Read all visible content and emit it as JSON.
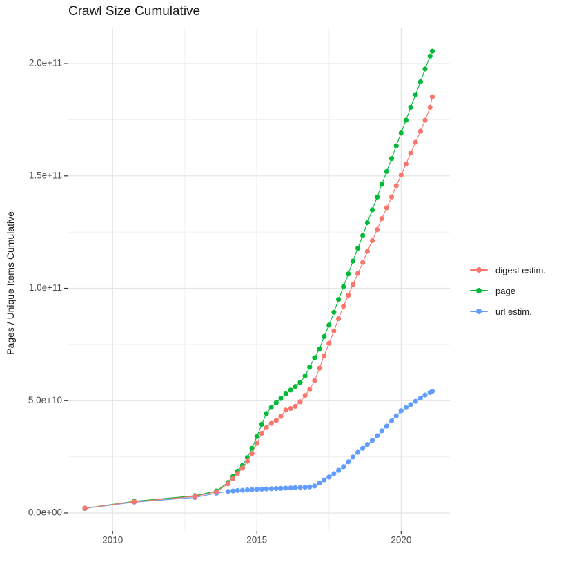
{
  "title": "Crawl Size Cumulative",
  "y_axis_title": "Pages / Unique Items Cumulative",
  "colors": {
    "background": "#ffffff",
    "grid_major": "#e3e3e3",
    "grid_minor": "#f0f0f0",
    "tick_mark": "#333333",
    "axis_text": "#4d4d4d",
    "title_text": "#1a1a1a"
  },
  "chart_data": {
    "type": "scatter",
    "title": "Crawl Size Cumulative",
    "xlabel": "",
    "ylabel": "Pages / Unique Items Cumulative",
    "x_unit": "year (decimal)",
    "y_unit": "count; stored values are in billions (value x 1e9)",
    "grid": true,
    "legend_position": "right",
    "xlim": [
      2008.44,
      2021.69
    ],
    "ylim_e9": [
      -8,
      216
    ],
    "x_ticks": [
      {
        "value": 2010,
        "label": "2010"
      },
      {
        "value": 2015,
        "label": "2015"
      },
      {
        "value": 2020,
        "label": "2020"
      }
    ],
    "x_minor": [
      2012.5,
      2017.5
    ],
    "y_ticks": [
      {
        "value_e9": 0,
        "label": "0.0e+00"
      },
      {
        "value_e9": 50,
        "label": "5.0e+10"
      },
      {
        "value_e9": 100,
        "label": "1.0e+11"
      },
      {
        "value_e9": 150,
        "label": "1.5e+11"
      },
      {
        "value_e9": 200,
        "label": "2.0e+11"
      }
    ],
    "y_minor_e9": [
      25,
      75,
      125,
      175
    ],
    "draw_order": [
      "url estim.",
      "page",
      "digest estim."
    ],
    "series": [
      {
        "name": "digest estim.",
        "color": "#F8766D",
        "points": [
          [
            2009.04,
            2.1
          ],
          [
            2010.75,
            5.0
          ],
          [
            2012.85,
            7.4
          ],
          [
            2013.6,
            9.4
          ],
          [
            2014.0,
            13.0
          ],
          [
            2014.17,
            15.3
          ],
          [
            2014.33,
            17.6
          ],
          [
            2014.5,
            20.0
          ],
          [
            2014.67,
            23.0
          ],
          [
            2014.83,
            26.5
          ],
          [
            2015.0,
            31.0
          ],
          [
            2015.17,
            35.5
          ],
          [
            2015.33,
            38.0
          ],
          [
            2015.5,
            39.9
          ],
          [
            2015.67,
            41.2
          ],
          [
            2015.83,
            43.0
          ],
          [
            2016.0,
            45.8
          ],
          [
            2016.17,
            46.5
          ],
          [
            2016.33,
            47.5
          ],
          [
            2016.5,
            49.5
          ],
          [
            2016.67,
            52.3
          ],
          [
            2016.83,
            55.0
          ],
          [
            2017.0,
            58.9
          ],
          [
            2017.17,
            64.5
          ],
          [
            2017.33,
            70.0
          ],
          [
            2017.5,
            75.5
          ],
          [
            2017.67,
            81.0
          ],
          [
            2017.83,
            86.5
          ],
          [
            2018.0,
            92.0
          ],
          [
            2018.17,
            96.9
          ],
          [
            2018.33,
            101.7
          ],
          [
            2018.5,
            106.6
          ],
          [
            2018.67,
            111.5
          ],
          [
            2018.83,
            116.4
          ],
          [
            2019.0,
            121.2
          ],
          [
            2019.17,
            126.1
          ],
          [
            2019.33,
            131.0
          ],
          [
            2019.5,
            135.8
          ],
          [
            2019.67,
            140.7
          ],
          [
            2019.83,
            145.6
          ],
          [
            2020.0,
            150.4
          ],
          [
            2020.17,
            155.3
          ],
          [
            2020.33,
            160.2
          ],
          [
            2020.5,
            165.0
          ],
          [
            2020.67,
            169.9
          ],
          [
            2020.83,
            174.8
          ],
          [
            2021.0,
            180.5
          ],
          [
            2021.08,
            185.2
          ]
        ]
      },
      {
        "name": "page",
        "color": "#00BA38",
        "points": [
          [
            2009.04,
            2.1
          ],
          [
            2010.75,
            5.2
          ],
          [
            2012.85,
            7.7
          ],
          [
            2013.6,
            9.8
          ],
          [
            2014.0,
            13.6
          ],
          [
            2014.17,
            16.2
          ],
          [
            2014.33,
            18.6
          ],
          [
            2014.5,
            21.2
          ],
          [
            2014.67,
            24.6
          ],
          [
            2014.83,
            28.8
          ],
          [
            2015.0,
            34.0
          ],
          [
            2015.17,
            39.5
          ],
          [
            2015.33,
            44.3
          ],
          [
            2015.5,
            47.0
          ],
          [
            2015.67,
            49.1
          ],
          [
            2015.83,
            51.0
          ],
          [
            2016.0,
            53.0
          ],
          [
            2016.17,
            54.7
          ],
          [
            2016.33,
            56.3
          ],
          [
            2016.5,
            58.2
          ],
          [
            2016.67,
            61.0
          ],
          [
            2016.83,
            64.9
          ],
          [
            2017.0,
            69.1
          ],
          [
            2017.17,
            73.0
          ],
          [
            2017.33,
            78.5
          ],
          [
            2017.5,
            83.6
          ],
          [
            2017.67,
            89.3
          ],
          [
            2017.83,
            95.0
          ],
          [
            2018.0,
            100.7
          ],
          [
            2018.17,
            106.4
          ],
          [
            2018.33,
            112.1
          ],
          [
            2018.5,
            117.8
          ],
          [
            2018.67,
            123.5
          ],
          [
            2018.83,
            129.2
          ],
          [
            2019.0,
            134.9
          ],
          [
            2019.17,
            140.6
          ],
          [
            2019.33,
            146.3
          ],
          [
            2019.5,
            152.0
          ],
          [
            2019.67,
            157.7
          ],
          [
            2019.83,
            163.4
          ],
          [
            2020.0,
            169.1
          ],
          [
            2020.17,
            174.8
          ],
          [
            2020.33,
            180.5
          ],
          [
            2020.5,
            186.2
          ],
          [
            2020.67,
            191.9
          ],
          [
            2020.83,
            197.6
          ],
          [
            2021.0,
            203.3
          ],
          [
            2021.08,
            205.5
          ]
        ]
      },
      {
        "name": "url estim.",
        "color": "#619CFF",
        "points": [
          [
            2009.04,
            2.0
          ],
          [
            2010.75,
            4.8
          ],
          [
            2012.85,
            6.9
          ],
          [
            2013.6,
            8.8
          ],
          [
            2014.0,
            9.6
          ],
          [
            2014.17,
            9.8
          ],
          [
            2014.33,
            10.0
          ],
          [
            2014.5,
            10.1
          ],
          [
            2014.67,
            10.25
          ],
          [
            2014.83,
            10.4
          ],
          [
            2015.0,
            10.5
          ],
          [
            2015.17,
            10.6
          ],
          [
            2015.33,
            10.7
          ],
          [
            2015.5,
            10.8
          ],
          [
            2015.67,
            10.9
          ],
          [
            2015.83,
            10.95
          ],
          [
            2016.0,
            11.05
          ],
          [
            2016.17,
            11.15
          ],
          [
            2016.33,
            11.25
          ],
          [
            2016.5,
            11.35
          ],
          [
            2016.67,
            11.45
          ],
          [
            2016.83,
            11.6
          ],
          [
            2017.0,
            12.0
          ],
          [
            2017.17,
            13.3
          ],
          [
            2017.33,
            14.7
          ],
          [
            2017.5,
            16.0
          ],
          [
            2017.67,
            17.5
          ],
          [
            2017.83,
            19.0
          ],
          [
            2018.0,
            20.6
          ],
          [
            2018.17,
            22.8
          ],
          [
            2018.33,
            24.9
          ],
          [
            2018.5,
            27.0
          ],
          [
            2018.67,
            28.8
          ],
          [
            2018.83,
            30.5
          ],
          [
            2019.0,
            32.3
          ],
          [
            2019.17,
            34.4
          ],
          [
            2019.33,
            36.6
          ],
          [
            2019.5,
            38.7
          ],
          [
            2019.67,
            41.0
          ],
          [
            2019.83,
            43.2
          ],
          [
            2020.0,
            45.5
          ],
          [
            2020.17,
            46.9
          ],
          [
            2020.33,
            48.3
          ],
          [
            2020.5,
            49.7
          ],
          [
            2020.67,
            51.1
          ],
          [
            2020.83,
            52.5
          ],
          [
            2021.0,
            53.6
          ],
          [
            2021.08,
            54.2
          ]
        ]
      }
    ]
  }
}
